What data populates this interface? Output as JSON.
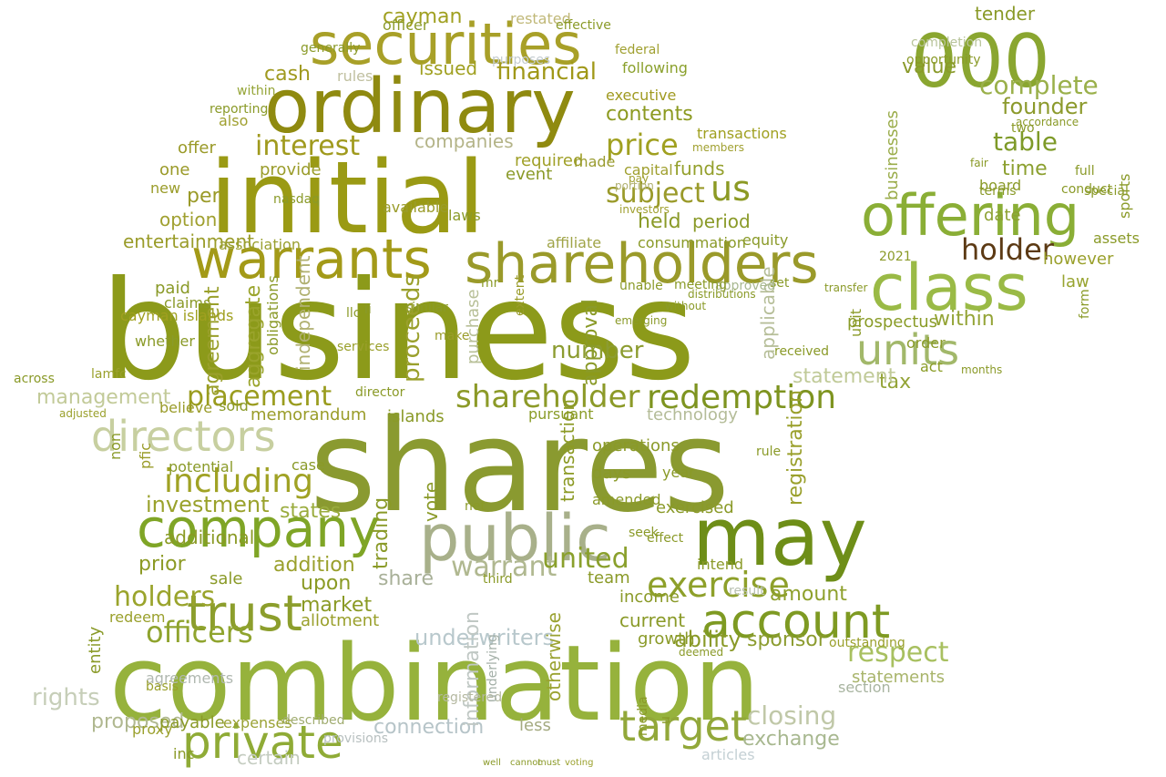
{
  "cloud": {
    "words": [
      {
        "text": "business",
        "color": "#8c9a1a"
      },
      {
        "text": "shares",
        "color": "#8a9a30"
      },
      {
        "text": "combination",
        "color": "#96b23c"
      },
      {
        "text": "initial",
        "color": "#9a9a14"
      },
      {
        "text": "ordinary",
        "color": "#8f8a10"
      },
      {
        "text": "securities",
        "color": "#a8a028"
      },
      {
        "text": "warrants",
        "color": "#a39a18"
      },
      {
        "text": "shareholders",
        "color": "#9a9a2a"
      },
      {
        "text": "company",
        "color": "#7fa526"
      },
      {
        "text": "public",
        "color": "#a8b08a"
      },
      {
        "text": "may",
        "color": "#6e8e18"
      },
      {
        "text": "offering",
        "color": "#8aae36"
      },
      {
        "text": "class",
        "color": "#9aba46"
      },
      {
        "text": "000",
        "color": "#8aa630"
      },
      {
        "text": "account",
        "color": "#7e9a22"
      },
      {
        "text": "trust",
        "color": "#8c9e2c"
      },
      {
        "text": "directors",
        "color": "#c7cfa0"
      },
      {
        "text": "private",
        "color": "#8fab36"
      },
      {
        "text": "units",
        "color": "#a2b86a"
      },
      {
        "text": "target",
        "color": "#92a83a"
      },
      {
        "text": "redemption",
        "color": "#7e9420"
      },
      {
        "text": "shareholder",
        "color": "#8c9a28"
      },
      {
        "text": "holder",
        "color": "#5c3a14"
      },
      {
        "text": "respect",
        "color": "#a8c060"
      },
      {
        "text": "exercise",
        "color": "#8ea02a"
      },
      {
        "text": "including",
        "color": "#a0a224"
      },
      {
        "text": "placement",
        "color": "#9a9c1e"
      },
      {
        "text": "interest",
        "color": "#a09a1e"
      },
      {
        "text": "price",
        "color": "#a0a020"
      },
      {
        "text": "us",
        "color": "#8c9a24"
      },
      {
        "text": "subject",
        "color": "#9a9a2a"
      },
      {
        "text": "officers",
        "color": "#8fa42e"
      },
      {
        "text": "market",
        "color": "#8a9a24"
      },
      {
        "text": "management",
        "color": "#c2ca98"
      },
      {
        "text": "rights",
        "color": "#c6ceb8"
      },
      {
        "text": "connection",
        "color": "#b6c4c8"
      },
      {
        "text": "underwriters",
        "color": "#b8c8cc"
      },
      {
        "text": "investment",
        "color": "#9aa22c"
      },
      {
        "text": "complete",
        "color": "#9ab04a"
      },
      {
        "text": "table",
        "color": "#7e9a28"
      },
      {
        "text": "founder",
        "color": "#8c9a2c"
      },
      {
        "text": "value",
        "color": "#8a9a2a"
      },
      {
        "text": "tax",
        "color": "#94a438"
      },
      {
        "text": "cayman",
        "color": "#a0a020"
      },
      {
        "text": "restated",
        "color": "#c0b878"
      },
      {
        "text": "financial",
        "color": "#a09818"
      },
      {
        "text": "contents",
        "color": "#8c9a20"
      },
      {
        "text": "executive",
        "color": "#a09a20"
      },
      {
        "text": "companies",
        "color": "#b4b488"
      },
      {
        "text": "cash",
        "color": "#a09a20"
      },
      {
        "text": "issued",
        "color": "#a0a020"
      },
      {
        "text": "time",
        "color": "#8ca030"
      },
      {
        "text": "board",
        "color": "#8a9a28"
      },
      {
        "text": "period",
        "color": "#8a9a28"
      },
      {
        "text": "held",
        "color": "#8a9a28"
      },
      {
        "text": "funds",
        "color": "#94a02c"
      },
      {
        "text": "capital",
        "color": "#a0a030"
      },
      {
        "text": "required",
        "color": "#a0a028"
      },
      {
        "text": "provide",
        "color": "#9a9c2a"
      },
      {
        "text": "offer",
        "color": "#9a9a28"
      },
      {
        "text": "one",
        "color": "#9a9a28"
      },
      {
        "text": "per",
        "color": "#9a9a28"
      },
      {
        "text": "option",
        "color": "#a0a030"
      },
      {
        "text": "entertainment",
        "color": "#9a9c2a"
      },
      {
        "text": "association",
        "color": "#9aa030"
      },
      {
        "text": "memorandum",
        "color": "#9a9c28"
      },
      {
        "text": "islands",
        "color": "#8a9a28"
      },
      {
        "text": "number",
        "color": "#8c9c30"
      },
      {
        "text": "within",
        "color": "#94a436"
      },
      {
        "text": "prospectus",
        "color": "#8a9c28"
      },
      {
        "text": "date",
        "color": "#8ca030"
      },
      {
        "text": "law",
        "color": "#98a430"
      },
      {
        "text": "statement",
        "color": "#c0ca98"
      },
      {
        "text": "act",
        "color": "#8a9c24"
      },
      {
        "text": "holders",
        "color": "#9aa42c"
      },
      {
        "text": "prior",
        "color": "#8c9a24"
      },
      {
        "text": "addition",
        "color": "#9aa02c"
      },
      {
        "text": "upon",
        "color": "#8a9a24"
      },
      {
        "text": "share",
        "color": "#a8b098"
      },
      {
        "text": "warrant",
        "color": "#b0b890"
      },
      {
        "text": "united",
        "color": "#8aa02c"
      },
      {
        "text": "amount",
        "color": "#8ea02c"
      },
      {
        "text": "ability",
        "color": "#8a9a28"
      },
      {
        "text": "sponsor",
        "color": "#8c9c30"
      },
      {
        "text": "closing",
        "color": "#c0c8a8"
      },
      {
        "text": "exchange",
        "color": "#a8b890"
      },
      {
        "text": "statements",
        "color": "#a8b46a"
      },
      {
        "text": "outstanding",
        "color": "#9aa02c"
      },
      {
        "text": "additional",
        "color": "#8a9a24"
      },
      {
        "text": "exercised",
        "color": "#8a9a28"
      },
      {
        "text": "year",
        "color": "#8a9a28"
      },
      {
        "text": "days",
        "color": "#8a9a28"
      },
      {
        "text": "amended",
        "color": "#8a9a28"
      },
      {
        "text": "income",
        "color": "#8a9a28"
      },
      {
        "text": "allotment",
        "color": "#9aa02c"
      },
      {
        "text": "states",
        "color": "#9aac3e"
      },
      {
        "text": "certain",
        "color": "#c4ccc0"
      },
      {
        "text": "proposed",
        "color": "#b0b890"
      },
      {
        "text": "provisions",
        "color": "#b8c0c0"
      },
      {
        "text": "described",
        "color": "#a0ac70"
      },
      {
        "text": "articles",
        "color": "#c4d0d4"
      },
      {
        "text": "less",
        "color": "#a4aa80"
      },
      {
        "text": "payable",
        "color": "#8a9a28"
      },
      {
        "text": "expenses",
        "color": "#9aa234"
      },
      {
        "text": "redeem",
        "color": "#9aa02c"
      },
      {
        "text": "sale",
        "color": "#8a9a28"
      },
      {
        "text": "seek",
        "color": "#8a9a28"
      },
      {
        "text": "team",
        "color": "#8a9a28"
      },
      {
        "text": "operations",
        "color": "#8a9a28"
      },
      {
        "text": "technology",
        "color": "#b4bc98"
      },
      {
        "text": "pursuant",
        "color": "#8a9c28"
      },
      {
        "text": "transaction",
        "color": "#8c9a24"
      },
      {
        "text": "approval",
        "color": "#8a9a28"
      },
      {
        "text": "applicable",
        "color": "#b6be98"
      },
      {
        "text": "registration",
        "color": "#9aa02c"
      },
      {
        "text": "trading",
        "color": "#8a9a28"
      },
      {
        "text": "vote",
        "color": "#8a9a28"
      },
      {
        "text": "purchase",
        "color": "#b8c098"
      },
      {
        "text": "proceeds",
        "color": "#9aa02c"
      },
      {
        "text": "aggregate",
        "color": "#9aa42c"
      },
      {
        "text": "agreement",
        "color": "#9aa02c"
      },
      {
        "text": "independent",
        "color": "#b0b070"
      },
      {
        "text": "obligations",
        "color": "#8a9a28"
      },
      {
        "text": "equity",
        "color": "#8a9a28"
      },
      {
        "text": "consummation",
        "color": "#8a9a28"
      },
      {
        "text": "affiliate",
        "color": "#a0a448"
      },
      {
        "text": "event",
        "color": "#8a9a28"
      },
      {
        "text": "made",
        "color": "#9a9c30"
      },
      {
        "text": "laws",
        "color": "#8a9a28"
      },
      {
        "text": "available",
        "color": "#9a9c2a"
      },
      {
        "text": "new",
        "color": "#9a9c2a"
      },
      {
        "text": "also",
        "color": "#a0a030"
      },
      {
        "text": "rules",
        "color": "#c0c0a0"
      },
      {
        "text": "following",
        "color": "#8aa02c"
      },
      {
        "text": "tender",
        "color": "#8a9a28"
      },
      {
        "text": "opportunity",
        "color": "#8a9a28"
      },
      {
        "text": "completion",
        "color": "#b8c49a"
      },
      {
        "text": "businesses",
        "color": "#9aac4a"
      },
      {
        "text": "sports",
        "color": "#8a9a28"
      },
      {
        "text": "assets",
        "color": "#8a9a28"
      },
      {
        "text": "however",
        "color": "#9aa02c"
      },
      {
        "text": "unit",
        "color": "#8a9a28"
      },
      {
        "text": "form",
        "color": "#8a9a28"
      },
      {
        "text": "order",
        "color": "#8a9a28"
      },
      {
        "text": "2021",
        "color": "#8a9a28"
      },
      {
        "text": "section",
        "color": "#a8b4a0"
      },
      {
        "text": "information",
        "color": "#c0c8c4"
      },
      {
        "text": "growth",
        "color": "#8a9a28"
      },
      {
        "text": "current",
        "color": "#8a9a28"
      },
      {
        "text": "u",
        "color": "#8a9a28"
      },
      {
        "text": "media",
        "color": "#8a9a28"
      },
      {
        "text": "otherwise",
        "color": "#9aa230"
      },
      {
        "text": "registered",
        "color": "#b4b8a0"
      },
      {
        "text": "underlying",
        "color": "#a4b0a8"
      },
      {
        "text": "agreements",
        "color": "#b0b8b0"
      },
      {
        "text": "basis",
        "color": "#9aa02c"
      },
      {
        "text": "entity",
        "color": "#8a9a28"
      },
      {
        "text": "proxy",
        "color": "#9aa02c"
      },
      {
        "text": "inc",
        "color": "#8a9a28"
      },
      {
        "text": "purposes",
        "color": "#c4ccd0"
      },
      {
        "text": "cayman islands",
        "color": "#a0a020"
      },
      {
        "text": "claims",
        "color": "#8a9a28"
      },
      {
        "text": "paid",
        "color": "#8a9a28"
      },
      {
        "text": "believe",
        "color": "#9a9c2a"
      },
      {
        "text": "sold",
        "color": "#8a9a28"
      },
      {
        "text": "whether",
        "color": "#8a9a28"
      },
      {
        "text": "case",
        "color": "#8a9a28"
      },
      {
        "text": "pfic",
        "color": "#9a9c2a"
      },
      {
        "text": "potential",
        "color": "#8a9a28"
      },
      {
        "text": "non",
        "color": "#8a9a28"
      },
      {
        "text": "adjusted",
        "color": "#9aa02c"
      },
      {
        "text": "lamfc",
        "color": "#9aa02c"
      },
      {
        "text": "nasdaq",
        "color": "#8a9a28"
      },
      {
        "text": "mr",
        "color": "#8a9a28"
      },
      {
        "text": "ii",
        "color": "#8a9a28"
      },
      {
        "text": "llc",
        "color": "#8a9a28"
      },
      {
        "text": "director",
        "color": "#8a9a28"
      },
      {
        "text": "services",
        "color": "#9aa02c"
      },
      {
        "text": "similar",
        "color": "#8a9a28"
      },
      {
        "text": "make",
        "color": "#9a9c2a"
      },
      {
        "text": "extent",
        "color": "#9a9c2a"
      },
      {
        "text": "third",
        "color": "#8a9a28"
      },
      {
        "text": "intend",
        "color": "#8a9a28"
      },
      {
        "text": "net",
        "color": "#8a9a28"
      },
      {
        "text": "result",
        "color": "#b8c0b0"
      },
      {
        "text": "effect",
        "color": "#8a9a28"
      },
      {
        "text": "effective",
        "color": "#8a9a28"
      },
      {
        "text": "officer",
        "color": "#8a9a28"
      },
      {
        "text": "generally",
        "color": "#8a9a28"
      },
      {
        "text": "reporting",
        "color": "#8a9a28"
      },
      {
        "text": "within",
        "color": "#94a436"
      },
      {
        "text": "federal",
        "color": "#a0a030"
      },
      {
        "text": "transactions",
        "color": "#a0a020"
      },
      {
        "text": "members",
        "color": "#a0a030"
      },
      {
        "text": "investors",
        "color": "#a0a030"
      },
      {
        "text": "pay",
        "color": "#a0a030"
      },
      {
        "text": "portion",
        "color": "#b0b070"
      },
      {
        "text": "terms",
        "color": "#8a9a28"
      },
      {
        "text": "conduct",
        "color": "#8a9a28"
      },
      {
        "text": "special",
        "color": "#8a9a28"
      },
      {
        "text": "full",
        "color": "#8a9a28"
      },
      {
        "text": "fair",
        "color": "#8a9a28"
      },
      {
        "text": "accordance",
        "color": "#8a9a28"
      },
      {
        "text": "two",
        "color": "#8a9a28"
      },
      {
        "text": "months",
        "color": "#8a9a28"
      },
      {
        "text": "rule",
        "color": "#8a9a28"
      },
      {
        "text": "received",
        "color": "#8a9a28"
      },
      {
        "text": "transfer",
        "color": "#8a9a28"
      },
      {
        "text": "set",
        "color": "#8a9a28"
      },
      {
        "text": "approved",
        "color": "#a8b890"
      },
      {
        "text": "unable",
        "color": "#8a9a28"
      },
      {
        "text": "meeting",
        "color": "#8a9a28"
      },
      {
        "text": "distributions",
        "color": "#8a9a28"
      },
      {
        "text": "without",
        "color": "#8a9a28"
      },
      {
        "text": "emerging",
        "color": "#8a9a28"
      },
      {
        "text": "deemed",
        "color": "#8a9a28"
      },
      {
        "text": "across",
        "color": "#8a9a28"
      },
      {
        "text": "well",
        "color": "#8a9a28"
      },
      {
        "text": "cannot",
        "color": "#8a9a28"
      },
      {
        "text": "must",
        "color": "#8a9a28"
      },
      {
        "text": "voting",
        "color": "#9aa02c"
      }
    ]
  }
}
